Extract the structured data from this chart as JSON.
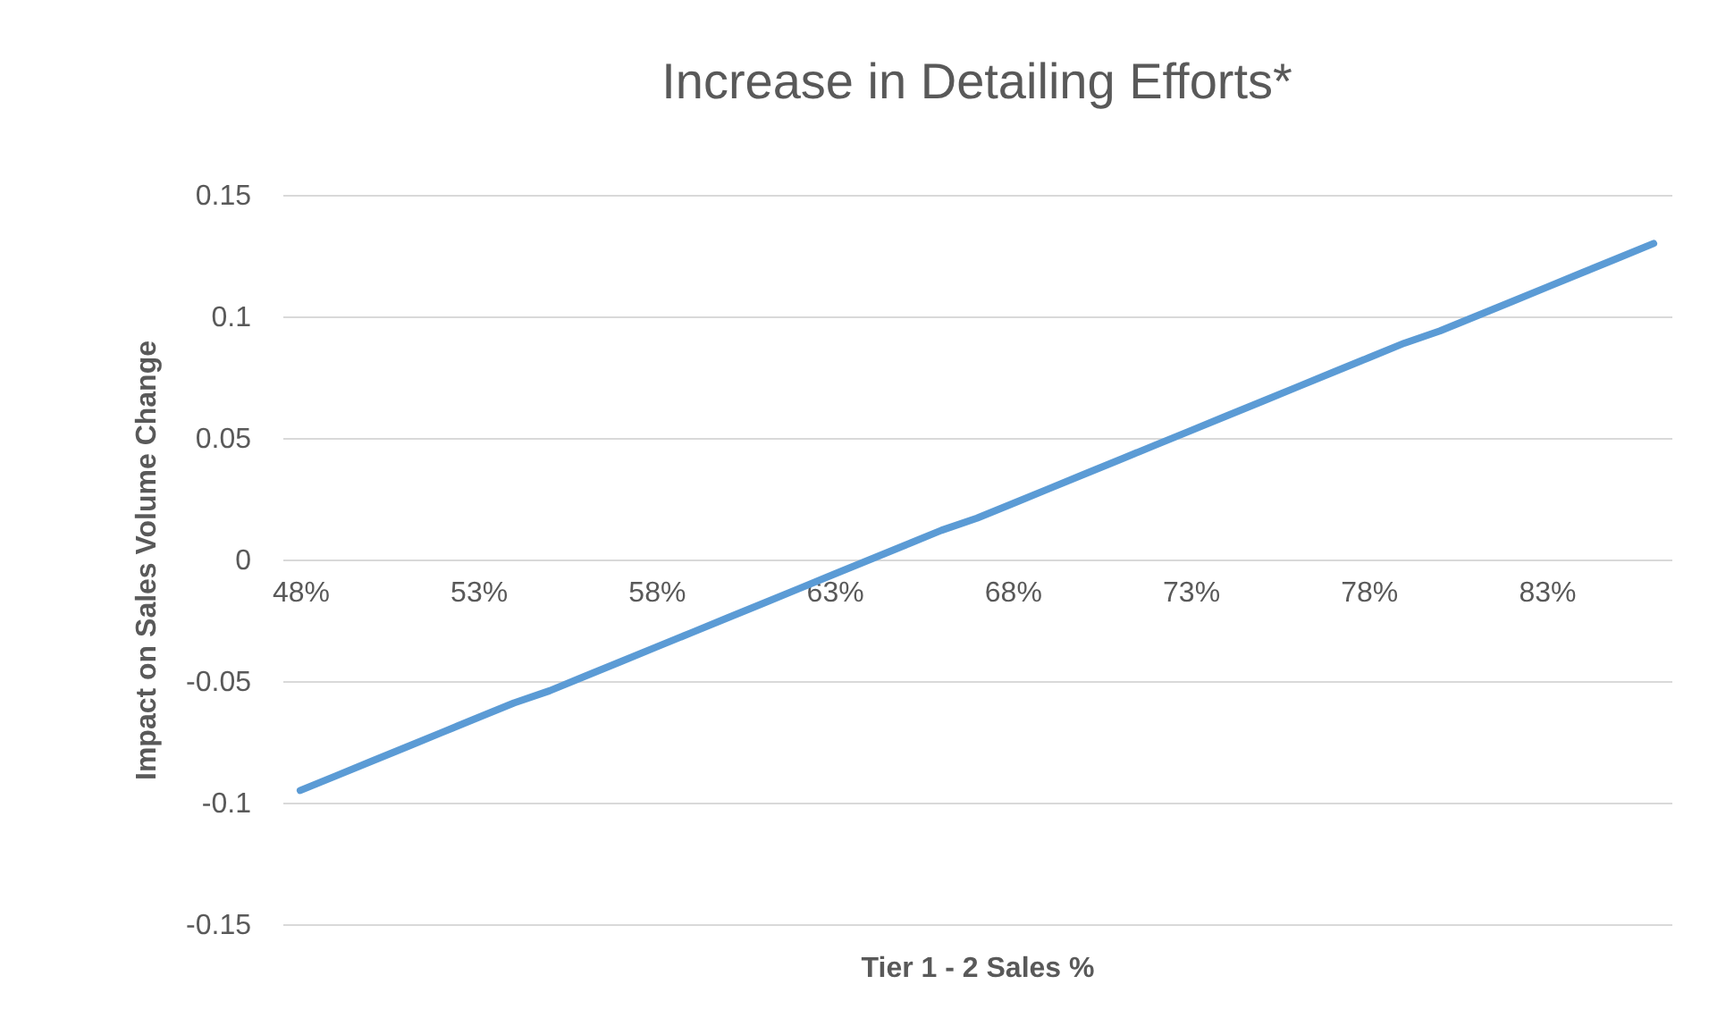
{
  "chart_data": {
    "type": "line",
    "title": "Increase in Detailing Efforts*",
    "xlabel": "Tier 1 - 2 Sales %",
    "ylabel": "Impact on Sales Volume Change",
    "categories": [
      "48%",
      null,
      null,
      null,
      null,
      "53%",
      null,
      null,
      null,
      null,
      "58%",
      null,
      null,
      null,
      null,
      "63%",
      null,
      null,
      null,
      null,
      "68%",
      null,
      null,
      null,
      null,
      "73%",
      null,
      null,
      null,
      null,
      "78%",
      null,
      null,
      null,
      null,
      "83%",
      null,
      null,
      null
    ],
    "series": [
      {
        "color": "#5b9bd5",
        "values": [
          -0.095,
          -0.089,
          -0.083,
          -0.077,
          -0.071,
          -0.065,
          -0.059,
          -0.054,
          -0.048,
          -0.042,
          -0.036,
          -0.03,
          -0.024,
          -0.018,
          -0.012,
          -0.006,
          0.0,
          0.006,
          0.012,
          0.017,
          0.023,
          0.029,
          0.035,
          0.041,
          0.047,
          0.053,
          0.059,
          0.065,
          0.071,
          0.077,
          0.083,
          0.089,
          0.094,
          0.1,
          0.106,
          0.112,
          0.118,
          0.124,
          0.13
        ]
      }
    ],
    "ylim": [
      -0.15,
      0.15
    ],
    "yticks": [
      -0.15,
      -0.1,
      -0.05,
      0,
      0.05,
      0.1,
      0.15
    ],
    "grid": "y"
  }
}
